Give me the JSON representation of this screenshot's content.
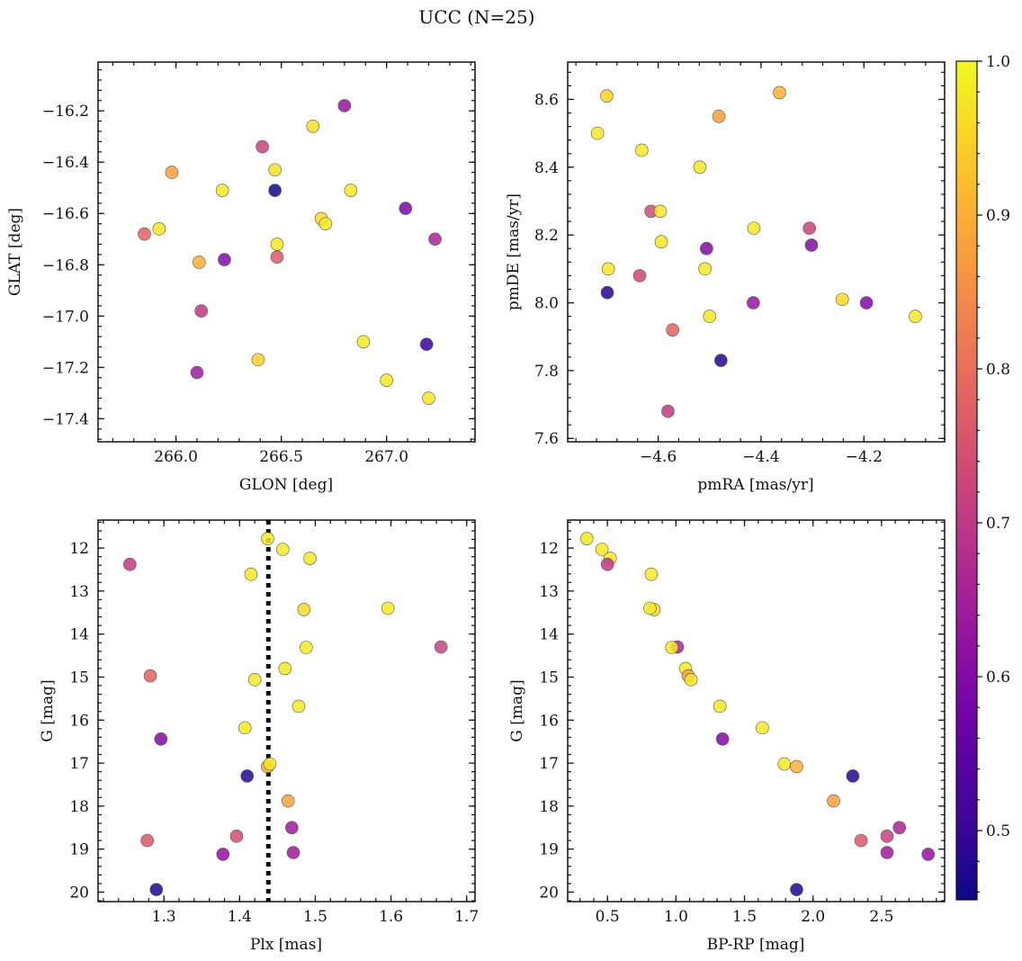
{
  "title": "UCC (N=25)",
  "colorbar": {
    "min": 0.455,
    "max": 1.0,
    "ticks": [
      0.5,
      0.6,
      0.7,
      0.8,
      0.9,
      1.0
    ],
    "tick_labels": [
      "0.5",
      "0.6",
      "0.7",
      "0.8",
      "0.9",
      "1.0"
    ],
    "colormap": "plasma"
  },
  "chart_data": [
    {
      "id": "glon-glat",
      "type": "scatter",
      "xlabel": "GLON [deg]",
      "ylabel": "GLAT [deg]",
      "xlim": [
        265.63,
        267.42
      ],
      "ylim": [
        -17.49,
        -16.01
      ],
      "y_inverted": false,
      "xticks": [
        266.0,
        266.5,
        267.0
      ],
      "xtick_labels": [
        "266.0",
        "266.5",
        "267.0"
      ],
      "yticks": [
        -17.4,
        -17.2,
        -17.0,
        -16.8,
        -16.6,
        -16.4,
        -16.2
      ],
      "ytick_labels": [
        "−17.4",
        "−17.2",
        "−17.0",
        "−16.8",
        "−16.6",
        "−16.4",
        "−16.2"
      ],
      "points": [
        {
          "x": 266.8,
          "y": -16.18,
          "c": 0.63
        },
        {
          "x": 266.65,
          "y": -16.26,
          "c": 0.97
        },
        {
          "x": 266.41,
          "y": -16.34,
          "c": 0.72
        },
        {
          "x": 265.98,
          "y": -16.44,
          "c": 0.88
        },
        {
          "x": 266.47,
          "y": -16.43,
          "c": 0.97
        },
        {
          "x": 266.22,
          "y": -16.51,
          "c": 0.98
        },
        {
          "x": 266.47,
          "y": -16.51,
          "c": 0.46
        },
        {
          "x": 266.83,
          "y": -16.51,
          "c": 0.98
        },
        {
          "x": 267.09,
          "y": -16.58,
          "c": 0.59
        },
        {
          "x": 265.85,
          "y": -16.68,
          "c": 0.78
        },
        {
          "x": 265.92,
          "y": -16.66,
          "c": 0.98
        },
        {
          "x": 266.69,
          "y": -16.62,
          "c": 0.96
        },
        {
          "x": 266.71,
          "y": -16.64,
          "c": 0.98
        },
        {
          "x": 267.23,
          "y": -16.7,
          "c": 0.66
        },
        {
          "x": 266.48,
          "y": -16.72,
          "c": 0.98
        },
        {
          "x": 266.48,
          "y": -16.77,
          "c": 0.76
        },
        {
          "x": 266.11,
          "y": -16.79,
          "c": 0.9
        },
        {
          "x": 266.23,
          "y": -16.78,
          "c": 0.6
        },
        {
          "x": 266.12,
          "y": -16.98,
          "c": 0.7
        },
        {
          "x": 266.89,
          "y": -17.1,
          "c": 0.98
        },
        {
          "x": 267.19,
          "y": -17.11,
          "c": 0.5
        },
        {
          "x": 266.39,
          "y": -17.17,
          "c": 0.95
        },
        {
          "x": 266.1,
          "y": -17.22,
          "c": 0.64
        },
        {
          "x": 267.0,
          "y": -17.25,
          "c": 0.98
        },
        {
          "x": 267.2,
          "y": -17.32,
          "c": 0.98
        }
      ]
    },
    {
      "id": "pmra-pmde",
      "type": "scatter",
      "xlabel": "pmRA [mas/yr]",
      "ylabel": "pmDE [mas/yr]",
      "xlim": [
        -4.776,
        -4.043
      ],
      "ylim": [
        7.59,
        8.71
      ],
      "y_inverted": false,
      "xticks": [
        -4.6,
        -4.4,
        -4.2
      ],
      "xtick_labels": [
        "−4.6",
        "−4.4",
        "−4.2"
      ],
      "yticks": [
        7.6,
        7.8,
        8.0,
        8.2,
        8.4,
        8.6
      ],
      "ytick_labels": [
        "7.6",
        "7.8",
        "8.0",
        "8.2",
        "8.4",
        "8.6"
      ],
      "points": [
        {
          "x": -4.7,
          "y": 8.61,
          "c": 0.95
        },
        {
          "x": -4.364,
          "y": 8.62,
          "c": 0.9
        },
        {
          "x": -4.718,
          "y": 8.5,
          "c": 0.98
        },
        {
          "x": -4.482,
          "y": 8.55,
          "c": 0.88
        },
        {
          "x": -4.632,
          "y": 8.45,
          "c": 0.98
        },
        {
          "x": -4.519,
          "y": 8.4,
          "c": 0.98
        },
        {
          "x": -4.614,
          "y": 8.27,
          "c": 0.74
        },
        {
          "x": -4.596,
          "y": 8.27,
          "c": 0.98
        },
        {
          "x": -4.306,
          "y": 8.22,
          "c": 0.72
        },
        {
          "x": -4.414,
          "y": 8.22,
          "c": 0.98
        },
        {
          "x": -4.594,
          "y": 8.18,
          "c": 0.98
        },
        {
          "x": -4.506,
          "y": 8.16,
          "c": 0.6
        },
        {
          "x": -4.302,
          "y": 8.17,
          "c": 0.6
        },
        {
          "x": -4.697,
          "y": 8.1,
          "c": 0.98
        },
        {
          "x": -4.509,
          "y": 8.1,
          "c": 0.98
        },
        {
          "x": -4.636,
          "y": 8.08,
          "c": 0.73
        },
        {
          "x": -4.699,
          "y": 8.03,
          "c": 0.48
        },
        {
          "x": -4.242,
          "y": 8.01,
          "c": 0.96
        },
        {
          "x": -4.195,
          "y": 8.0,
          "c": 0.6
        },
        {
          "x": -4.415,
          "y": 8.0,
          "c": 0.63
        },
        {
          "x": -4.5,
          "y": 7.96,
          "c": 0.98
        },
        {
          "x": -4.1,
          "y": 7.96,
          "c": 0.98
        },
        {
          "x": -4.572,
          "y": 7.92,
          "c": 0.78
        },
        {
          "x": -4.478,
          "y": 7.83,
          "c": 0.48
        },
        {
          "x": -4.581,
          "y": 7.68,
          "c": 0.7
        }
      ]
    },
    {
      "id": "plx-g",
      "type": "scatter",
      "xlabel": "Plx [mas]",
      "ylabel": "G [mag]",
      "xlim": [
        1.213,
        1.711
      ],
      "ylim": [
        11.35,
        20.22
      ],
      "y_inverted": true,
      "xticks": [
        1.3,
        1.4,
        1.5,
        1.6,
        1.7
      ],
      "xtick_labels": [
        "1.3",
        "1.4",
        "1.5",
        "1.6",
        "1.7"
      ],
      "yticks": [
        12,
        13,
        14,
        15,
        16,
        17,
        18,
        19,
        20
      ],
      "ytick_labels": [
        "12",
        "13",
        "14",
        "15",
        "16",
        "17",
        "18",
        "19",
        "20"
      ],
      "vline": {
        "x": 1.438,
        "style": "dotted"
      },
      "points": [
        {
          "x": 1.437,
          "y": 11.78,
          "c": 0.98
        },
        {
          "x": 1.457,
          "y": 12.03,
          "c": 0.98
        },
        {
          "x": 1.493,
          "y": 12.24,
          "c": 0.98
        },
        {
          "x": 1.255,
          "y": 12.38,
          "c": 0.7
        },
        {
          "x": 1.415,
          "y": 12.61,
          "c": 0.98
        },
        {
          "x": 1.485,
          "y": 13.43,
          "c": 0.96
        },
        {
          "x": 1.596,
          "y": 13.4,
          "c": 0.98
        },
        {
          "x": 1.666,
          "y": 14.3,
          "c": 0.72
        },
        {
          "x": 1.488,
          "y": 14.31,
          "c": 0.98
        },
        {
          "x": 1.46,
          "y": 14.8,
          "c": 0.98
        },
        {
          "x": 1.282,
          "y": 14.97,
          "c": 0.78
        },
        {
          "x": 1.42,
          "y": 15.06,
          "c": 0.98
        },
        {
          "x": 1.478,
          "y": 15.68,
          "c": 0.98
        },
        {
          "x": 1.407,
          "y": 16.18,
          "c": 0.98
        },
        {
          "x": 1.296,
          "y": 16.44,
          "c": 0.6
        },
        {
          "x": 1.437,
          "y": 17.08,
          "c": 0.9
        },
        {
          "x": 1.44,
          "y": 17.02,
          "c": 0.98
        },
        {
          "x": 1.41,
          "y": 17.3,
          "c": 0.48
        },
        {
          "x": 1.464,
          "y": 17.88,
          "c": 0.88
        },
        {
          "x": 1.469,
          "y": 18.5,
          "c": 0.64
        },
        {
          "x": 1.396,
          "y": 18.7,
          "c": 0.74
        },
        {
          "x": 1.278,
          "y": 18.8,
          "c": 0.76
        },
        {
          "x": 1.378,
          "y": 19.12,
          "c": 0.62
        },
        {
          "x": 1.471,
          "y": 19.08,
          "c": 0.64
        },
        {
          "x": 1.29,
          "y": 19.94,
          "c": 0.47
        }
      ]
    },
    {
      "id": "bprp-g",
      "type": "scatter",
      "xlabel": "BP-RP [mag]",
      "ylabel": "G [mag]",
      "xlim": [
        0.21,
        2.96
      ],
      "ylim": [
        11.35,
        20.22
      ],
      "y_inverted": true,
      "xticks": [
        0.5,
        1.0,
        1.5,
        2.0,
        2.5
      ],
      "xtick_labels": [
        "0.5",
        "1.0",
        "1.5",
        "2.0",
        "2.5"
      ],
      "yticks": [
        12,
        13,
        14,
        15,
        16,
        17,
        18,
        19,
        20
      ],
      "ytick_labels": [
        "12",
        "13",
        "14",
        "15",
        "16",
        "17",
        "18",
        "19",
        "20"
      ],
      "points": [
        {
          "x": 0.35,
          "y": 11.78,
          "c": 0.98
        },
        {
          "x": 0.46,
          "y": 12.03,
          "c": 0.98
        },
        {
          "x": 0.52,
          "y": 12.24,
          "c": 0.98
        },
        {
          "x": 0.5,
          "y": 12.38,
          "c": 0.7
        },
        {
          "x": 0.82,
          "y": 12.61,
          "c": 0.98
        },
        {
          "x": 0.84,
          "y": 13.43,
          "c": 0.96
        },
        {
          "x": 0.81,
          "y": 13.4,
          "c": 0.98
        },
        {
          "x": 1.01,
          "y": 14.3,
          "c": 0.66
        },
        {
          "x": 0.97,
          "y": 14.31,
          "c": 0.98
        },
        {
          "x": 1.07,
          "y": 14.8,
          "c": 0.98
        },
        {
          "x": 1.09,
          "y": 14.97,
          "c": 0.88
        },
        {
          "x": 1.11,
          "y": 15.06,
          "c": 0.98
        },
        {
          "x": 1.32,
          "y": 15.68,
          "c": 0.98
        },
        {
          "x": 1.63,
          "y": 16.18,
          "c": 0.98
        },
        {
          "x": 1.34,
          "y": 16.44,
          "c": 0.6
        },
        {
          "x": 1.79,
          "y": 17.02,
          "c": 0.98
        },
        {
          "x": 1.88,
          "y": 17.08,
          "c": 0.9
        },
        {
          "x": 2.29,
          "y": 17.3,
          "c": 0.48
        },
        {
          "x": 2.15,
          "y": 17.88,
          "c": 0.88
        },
        {
          "x": 2.63,
          "y": 18.5,
          "c": 0.66
        },
        {
          "x": 2.54,
          "y": 18.7,
          "c": 0.72
        },
        {
          "x": 2.35,
          "y": 18.8,
          "c": 0.76
        },
        {
          "x": 2.84,
          "y": 19.12,
          "c": 0.62
        },
        {
          "x": 2.54,
          "y": 19.08,
          "c": 0.64
        },
        {
          "x": 1.88,
          "y": 19.94,
          "c": 0.47
        }
      ]
    }
  ]
}
